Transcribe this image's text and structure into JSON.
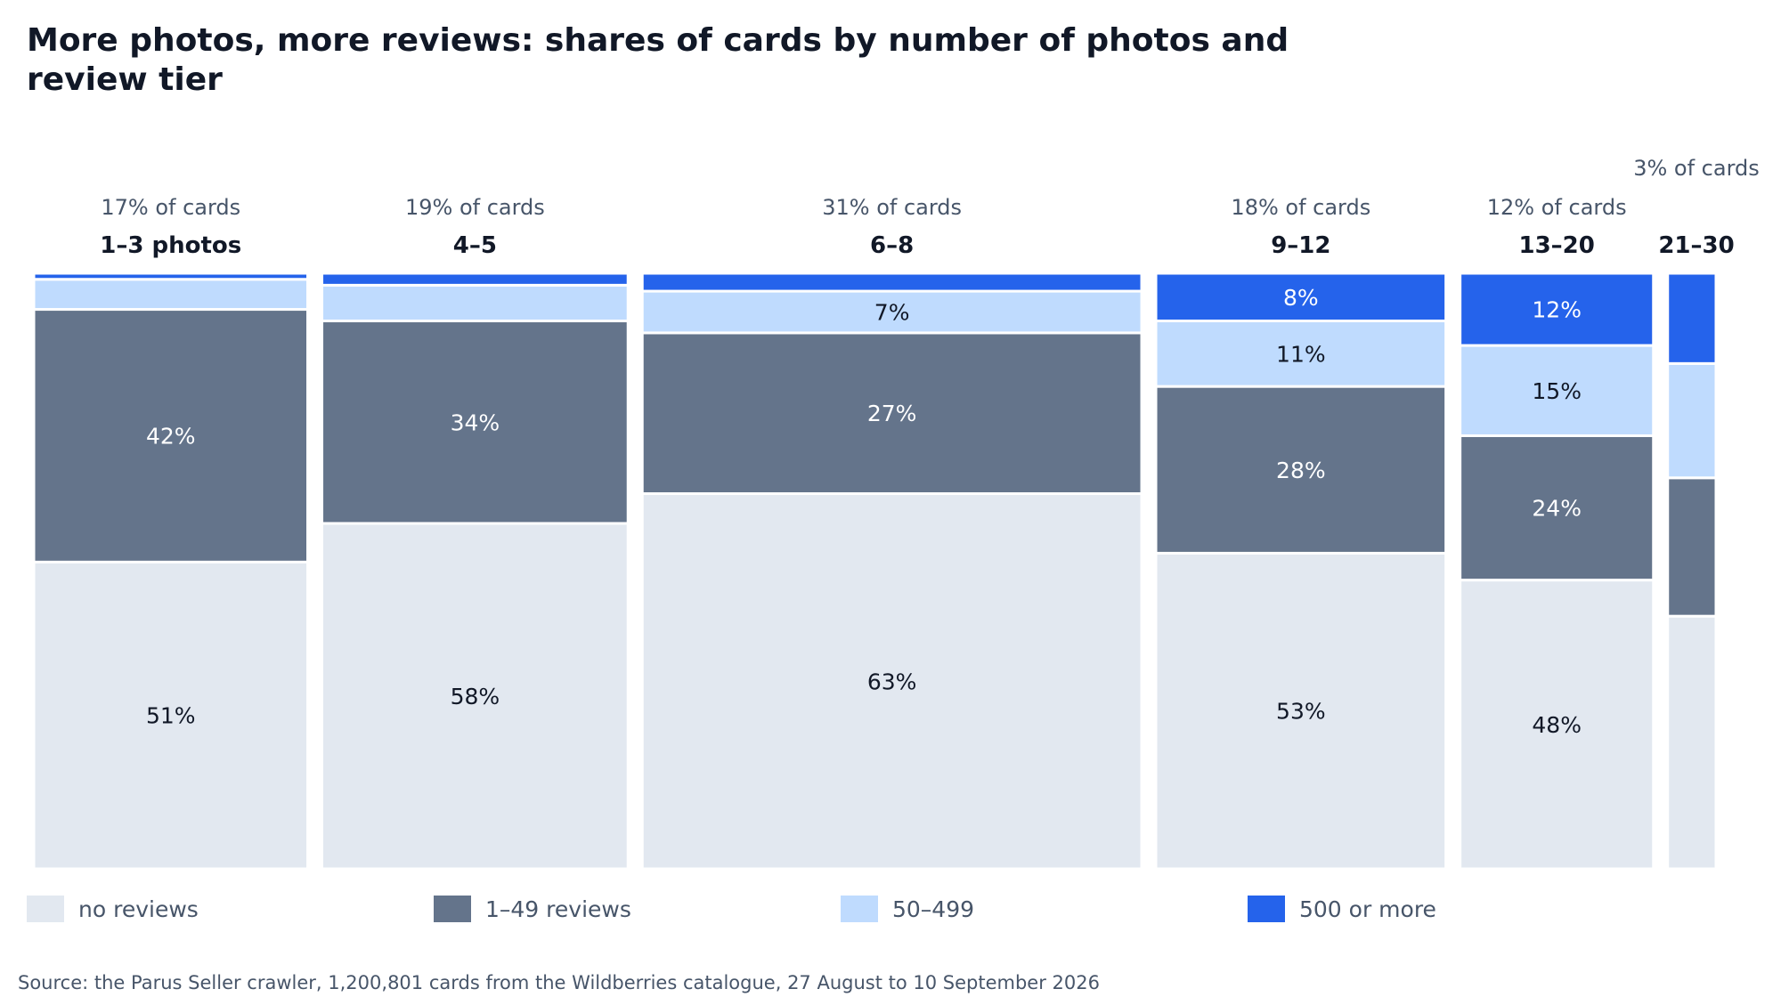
{
  "chart_data": {
    "type": "bar",
    "subtype": "mosaic",
    "title": "More photos, more reviews: shares of cards by number of photos and review tier",
    "categories": [
      "1–3 photos",
      "4–5",
      "6–8",
      "9–12",
      "13–20",
      "21–30"
    ],
    "category_share_labels": [
      "17% of cards",
      "19% of cards",
      "31% of cards",
      "18% of cards",
      "12% of cards",
      "3% of cards"
    ],
    "category_share": [
      17,
      19,
      31,
      18,
      12,
      3
    ],
    "ylim": [
      0,
      100
    ],
    "series": [
      {
        "name": "no reviews",
        "color": "#e2e8f0",
        "values": [
          51,
          58,
          63,
          53,
          48,
          42
        ],
        "labels": [
          "51%",
          "58%",
          "63%",
          "53%",
          "48%",
          ""
        ]
      },
      {
        "name": "1–49 reviews",
        "color": "#64748b",
        "values": [
          42,
          34,
          27,
          28,
          24,
          23
        ],
        "labels": [
          "42%",
          "34%",
          "27%",
          "28%",
          "24%",
          ""
        ]
      },
      {
        "name": "50–499",
        "color": "#bfdbfe",
        "values": [
          5,
          6,
          7,
          11,
          15,
          19
        ],
        "labels": [
          "",
          "",
          "7%",
          "11%",
          "15%",
          ""
        ]
      },
      {
        "name": "500 or more",
        "color": "#2563eb",
        "values": [
          1,
          2,
          3,
          8,
          12,
          15
        ],
        "labels": [
          "",
          "",
          "",
          "8%",
          "12%",
          ""
        ]
      }
    ],
    "grid": false,
    "legend": "bottom"
  },
  "source": "Source: the Parus Seller crawler, 1,200,801 cards from the Wildberries catalogue, 27 August to 10 September 2026"
}
